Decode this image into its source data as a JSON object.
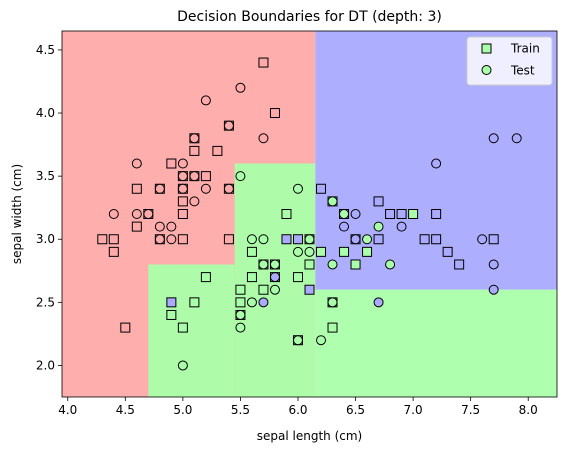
{
  "chart_data": {
    "type": "scatter",
    "title": "Decision Boundaries for DT (depth: 3)",
    "xlabel": "sepal length (cm)",
    "ylabel": "sepal width (cm)",
    "xlim": [
      3.95,
      8.25
    ],
    "ylim": [
      1.75,
      4.65
    ],
    "xticks": [
      "4.0",
      "4.5",
      "5.0",
      "5.5",
      "6.0",
      "6.5",
      "7.0",
      "7.5",
      "8.0"
    ],
    "yticks": [
      "2.0",
      "2.5",
      "3.0",
      "3.5",
      "4.0",
      "4.5"
    ],
    "grid": false,
    "legend_position": "top-right",
    "class_colors": {
      "0": "#ffaaaa",
      "1": "#aaffaa",
      "2": "#aaaaff"
    },
    "region_opacity": 0.95,
    "decision_regions": [
      {
        "class": 0,
        "x": [
          3.95,
          6.15
        ],
        "y": [
          1.75,
          4.65
        ]
      },
      {
        "class": 2,
        "x": [
          6.15,
          8.25
        ],
        "y": [
          2.6,
          4.65
        ]
      },
      {
        "class": 1,
        "x": [
          4.7,
          5.45
        ],
        "y": [
          1.75,
          2.8
        ]
      },
      {
        "class": 1,
        "x": [
          5.45,
          6.15
        ],
        "y": [
          1.75,
          3.6
        ]
      },
      {
        "class": 1,
        "x": [
          6.15,
          8.25
        ],
        "y": [
          1.75,
          2.6
        ]
      }
    ],
    "series": [
      {
        "name": "Train",
        "marker": "square",
        "points": [
          [
            4.3,
            3.0,
            0
          ],
          [
            4.4,
            3.0,
            0
          ],
          [
            4.4,
            2.9,
            0
          ],
          [
            4.6,
            3.1,
            0
          ],
          [
            4.6,
            3.4,
            0
          ],
          [
            4.7,
            3.2,
            0
          ],
          [
            4.8,
            3.0,
            0
          ],
          [
            4.8,
            3.4,
            0
          ],
          [
            4.9,
            3.6,
            0
          ],
          [
            5.0,
            3.3,
            0
          ],
          [
            5.0,
            3.4,
            0
          ],
          [
            5.0,
            3.2,
            0
          ],
          [
            5.0,
            3.5,
            0
          ],
          [
            5.1,
            3.5,
            0
          ],
          [
            5.1,
            3.7,
            0
          ],
          [
            5.1,
            3.8,
            0
          ],
          [
            5.2,
            3.5,
            0
          ],
          [
            5.3,
            3.7,
            0
          ],
          [
            5.4,
            3.9,
            0
          ],
          [
            5.4,
            3.4,
            0
          ],
          [
            5.4,
            3.0,
            0
          ],
          [
            5.7,
            4.4,
            0
          ],
          [
            5.8,
            4.0,
            0
          ],
          [
            4.5,
            2.3,
            0
          ],
          [
            5.0,
            3.0,
            0
          ],
          [
            4.9,
            2.4,
            1
          ],
          [
            4.9,
            2.5,
            2
          ],
          [
            5.0,
            2.3,
            1
          ],
          [
            5.1,
            2.5,
            1
          ],
          [
            5.2,
            2.7,
            1
          ],
          [
            5.5,
            2.4,
            1
          ],
          [
            5.5,
            2.5,
            1
          ],
          [
            5.5,
            2.6,
            1
          ],
          [
            5.6,
            2.9,
            1
          ],
          [
            5.6,
            2.7,
            1
          ],
          [
            5.7,
            2.8,
            1
          ],
          [
            5.7,
            2.6,
            1
          ],
          [
            5.8,
            2.7,
            1
          ],
          [
            5.9,
            3.2,
            1
          ],
          [
            5.9,
            3.0,
            2
          ],
          [
            6.0,
            2.2,
            1
          ],
          [
            6.0,
            2.7,
            1
          ],
          [
            6.1,
            2.6,
            2
          ],
          [
            6.1,
            2.8,
            1
          ],
          [
            6.1,
            3.0,
            1
          ],
          [
            6.2,
            2.9,
            1
          ],
          [
            6.2,
            3.4,
            2
          ],
          [
            6.3,
            2.3,
            1
          ],
          [
            6.3,
            2.5,
            2
          ],
          [
            6.3,
            3.3,
            1
          ],
          [
            6.4,
            2.9,
            1
          ],
          [
            6.4,
            3.2,
            2
          ],
          [
            6.5,
            2.8,
            1
          ],
          [
            6.5,
            3.0,
            2
          ],
          [
            6.6,
            2.9,
            1
          ],
          [
            6.7,
            3.0,
            2
          ],
          [
            6.7,
            3.3,
            2
          ],
          [
            6.8,
            3.2,
            2
          ],
          [
            6.9,
            3.2,
            2
          ],
          [
            7.0,
            3.2,
            1
          ],
          [
            7.1,
            3.0,
            2
          ],
          [
            7.2,
            3.2,
            2
          ],
          [
            7.2,
            3.0,
            2
          ],
          [
            7.3,
            2.9,
            2
          ],
          [
            7.4,
            2.8,
            2
          ],
          [
            7.7,
            3.0,
            2
          ],
          [
            5.8,
            2.8,
            2
          ],
          [
            6.0,
            3.0,
            2
          ]
        ]
      },
      {
        "name": "Test",
        "marker": "circle",
        "points": [
          [
            4.4,
            3.2,
            0
          ],
          [
            4.6,
            3.2,
            0
          ],
          [
            4.7,
            3.2,
            0
          ],
          [
            4.8,
            3.0,
            0
          ],
          [
            4.8,
            3.4,
            0
          ],
          [
            4.8,
            3.1,
            0
          ],
          [
            4.9,
            3.0,
            0
          ],
          [
            4.9,
            3.1,
            0
          ],
          [
            5.0,
            3.5,
            0
          ],
          [
            5.0,
            3.6,
            0
          ],
          [
            5.1,
            3.3,
            0
          ],
          [
            5.1,
            3.5,
            0
          ],
          [
            5.1,
            3.8,
            0
          ],
          [
            5.2,
            3.4,
            0
          ],
          [
            5.2,
            4.1,
            0
          ],
          [
            5.4,
            3.9,
            0
          ],
          [
            5.4,
            3.4,
            0
          ],
          [
            5.5,
            3.5,
            1
          ],
          [
            5.5,
            4.2,
            0
          ],
          [
            5.7,
            3.8,
            0
          ],
          [
            4.6,
            3.6,
            0
          ],
          [
            5.0,
            3.4,
            0
          ],
          [
            5.0,
            2.0,
            1
          ],
          [
            5.5,
            2.3,
            1
          ],
          [
            5.5,
            2.4,
            1
          ],
          [
            5.6,
            2.5,
            1
          ],
          [
            5.6,
            3.0,
            1
          ],
          [
            5.7,
            3.0,
            1
          ],
          [
            5.7,
            2.5,
            2
          ],
          [
            5.7,
            2.8,
            1
          ],
          [
            5.8,
            2.6,
            1
          ],
          [
            5.8,
            2.7,
            2
          ],
          [
            5.8,
            2.8,
            1
          ],
          [
            6.0,
            2.2,
            1
          ],
          [
            6.0,
            2.9,
            1
          ],
          [
            6.0,
            3.4,
            1
          ],
          [
            6.1,
            2.9,
            1
          ],
          [
            6.1,
            3.0,
            1
          ],
          [
            6.2,
            2.2,
            1
          ],
          [
            6.3,
            2.5,
            1
          ],
          [
            6.3,
            2.8,
            1
          ],
          [
            6.3,
            3.3,
            1
          ],
          [
            6.4,
            3.1,
            2
          ],
          [
            6.4,
            3.2,
            1
          ],
          [
            6.5,
            3.0,
            2
          ],
          [
            6.6,
            3.0,
            1
          ],
          [
            6.7,
            3.1,
            1
          ],
          [
            6.7,
            2.5,
            2
          ],
          [
            6.8,
            2.8,
            1
          ],
          [
            6.9,
            3.1,
            2
          ],
          [
            7.2,
            3.6,
            2
          ],
          [
            7.6,
            3.0,
            2
          ],
          [
            7.7,
            3.8,
            2
          ],
          [
            7.7,
            2.8,
            2
          ],
          [
            7.7,
            2.6,
            2
          ],
          [
            7.9,
            3.8,
            2
          ],
          [
            6.5,
            3.2,
            2
          ]
        ]
      }
    ]
  }
}
